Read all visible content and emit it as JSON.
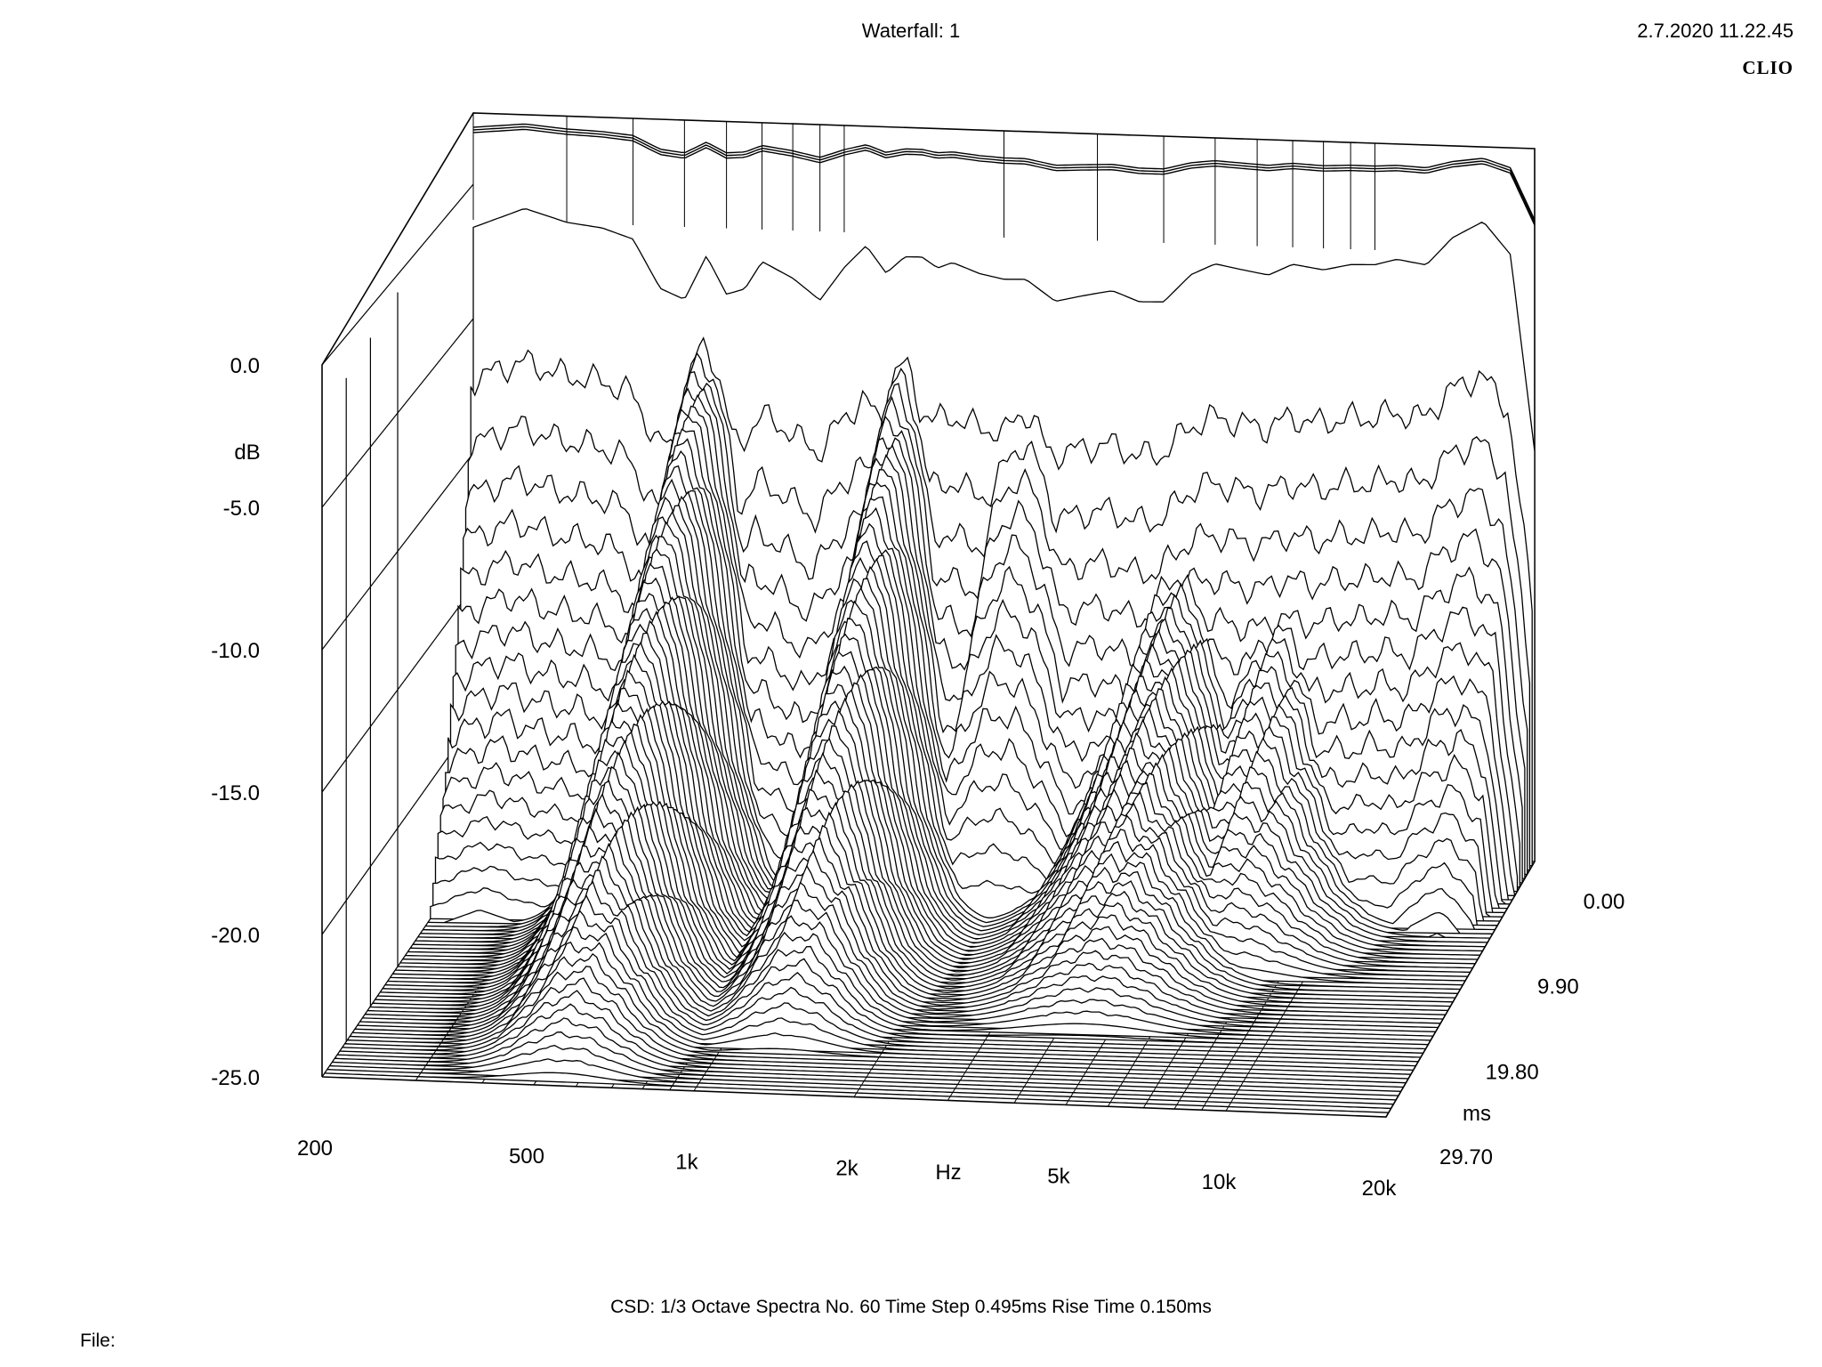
{
  "title": "Waterfall: 1",
  "timestamp": "2.7.2020 11.22.45",
  "brand": "CLIO",
  "footer": "CSD:   1/3 Octave   Spectra No. 60   Time Step 0.495ms   Rise Time 0.150ms",
  "file_label": "File:",
  "chart_data": {
    "type": "waterfall",
    "title": "Waterfall: 1",
    "xlabel": "Hz",
    "ylabel": "dB",
    "zlabel": "ms",
    "x_scale": "log",
    "x_ticks": [
      {
        "label": "200",
        "value": 200
      },
      {
        "label": "500",
        "value": 500
      },
      {
        "label": "1k",
        "value": 1000
      },
      {
        "label": "2k",
        "value": 2000
      },
      {
        "label": "5k",
        "value": 5000
      },
      {
        "label": "10k",
        "value": 10000
      },
      {
        "label": "20k",
        "value": 20000
      }
    ],
    "y_ticks": [
      {
        "label": "0.0",
        "value": 0
      },
      {
        "label": "-5.0",
        "value": -5
      },
      {
        "label": "-10.0",
        "value": -10
      },
      {
        "label": "-15.0",
        "value": -15
      },
      {
        "label": "-20.0",
        "value": -20
      },
      {
        "label": "-25.0",
        "value": -25
      }
    ],
    "z_ticks": [
      {
        "label": "0.00",
        "value": 0
      },
      {
        "label": "9.90",
        "value": 9.9
      },
      {
        "label": "19.80",
        "value": 19.8
      },
      {
        "label": "29.70",
        "value": 29.7
      }
    ],
    "xlim": [
      200,
      20000
    ],
    "ylim": [
      -25,
      0
    ],
    "zlim": [
      0,
      29.7
    ],
    "spectra_count": 60,
    "time_step_ms": 0.495,
    "first_spectrum": {
      "x": [
        200,
        250,
        300,
        350,
        400,
        450,
        500,
        550,
        600,
        650,
        700,
        800,
        900,
        1000,
        1100,
        1200,
        1300,
        1400,
        1500,
        1600,
        1800,
        2000,
        2200,
        2500,
        2800,
        3200,
        3600,
        4000,
        4500,
        5000,
        5600,
        6300,
        7000,
        8000,
        9000,
        10000,
        11000,
        12500,
        14000,
        16000,
        18000,
        20000
      ],
      "y": [
        -2.0,
        -1.3,
        -1.8,
        -2.0,
        -2.4,
        -4.2,
        -4.6,
        -3.0,
        -4.4,
        -4.2,
        -3.2,
        -3.8,
        -4.6,
        -3.4,
        -2.6,
        -3.6,
        -3.0,
        -3.0,
        -3.4,
        -3.2,
        -3.6,
        -3.8,
        -3.8,
        -4.6,
        -4.4,
        -4.2,
        -4.6,
        -4.6,
        -3.6,
        -3.2,
        -3.4,
        -3.6,
        -3.2,
        -3.4,
        -3.2,
        -3.2,
        -3.0,
        -3.2,
        -2.2,
        -1.6,
        -2.8,
        -10.0
      ]
    },
    "decay_peaks_db": [
      {
        "freq": 550,
        "level_at_0ms": -6.0,
        "decay_to_floor_ms": 29.7
      },
      {
        "freq": 1300,
        "level_at_0ms": -6.5,
        "decay_to_floor_ms": 25.0
      },
      {
        "freq": 2200,
        "level_at_0ms": -7.5,
        "decay_to_floor_ms": 8.0
      },
      {
        "freq": 4500,
        "level_at_0ms": -13.0,
        "decay_to_floor_ms": 22.0
      },
      {
        "freq": 7000,
        "level_at_0ms": -13.5,
        "decay_to_floor_ms": 15.0
      }
    ]
  }
}
